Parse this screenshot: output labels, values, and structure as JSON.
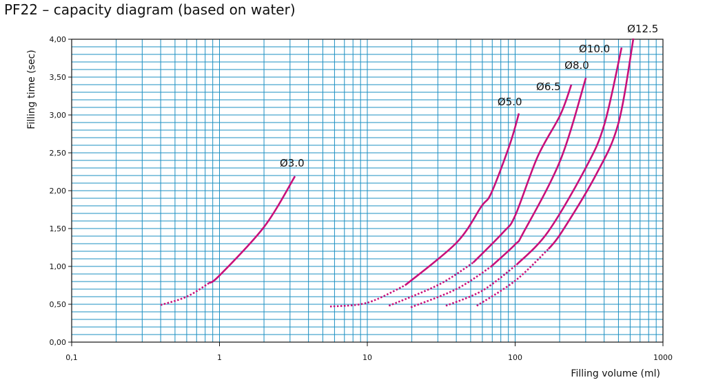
{
  "title": "PF22 – capacity diagram (based on water)",
  "chart_data": {
    "type": "line",
    "title": "PF22 – capacity diagram (based on water)",
    "xlabel": "Filling volume (ml)",
    "ylabel": "Filling time (sec)",
    "xscale": "log",
    "xlim": [
      0.1,
      1000
    ],
    "ylim": [
      0,
      4
    ],
    "grid": true,
    "x_ticks": [
      0.1,
      1,
      10,
      100,
      1000
    ],
    "x_tick_labels": [
      "0,1",
      "1",
      "10",
      "100",
      "1000"
    ],
    "y_ticks": [
      0,
      0.5,
      1,
      1.5,
      2,
      2.5,
      3,
      3.5,
      4
    ],
    "y_tick_labels": [
      "0,00",
      "0,50",
      "1,00",
      "1,50",
      "2,00",
      "2,50",
      "3,00",
      "3,50",
      "4,00"
    ],
    "line_color": "#c8107a",
    "grid_color": "#1b8fc2",
    "series": [
      {
        "name": "Ø3.0",
        "dotted_until": 0.85,
        "points": [
          [
            0.4,
            0.49
          ],
          [
            0.6,
            0.6
          ],
          [
            0.85,
            0.78
          ],
          [
            1,
            0.88
          ],
          [
            2.0,
            1.52
          ],
          [
            3.24,
            2.19
          ]
        ]
      },
      {
        "name": "Ø5.0",
        "dotted_until": 18,
        "points": [
          [
            5.6,
            0.47
          ],
          [
            10,
            0.52
          ],
          [
            18,
            0.75
          ],
          [
            40,
            1.31
          ],
          [
            59,
            1.79
          ],
          [
            69,
            1.97
          ],
          [
            92,
            2.61
          ],
          [
            106,
            3.02
          ]
        ]
      },
      {
        "name": "Ø6.5",
        "dotted_until": 52,
        "points": [
          [
            14,
            0.48
          ],
          [
            30.5,
            0.76
          ],
          [
            52,
            1.05
          ],
          [
            83,
            1.45
          ],
          [
            100,
            1.67
          ],
          [
            142,
            2.45
          ],
          [
            202,
            3.0
          ],
          [
            240,
            3.4
          ]
        ]
      },
      {
        "name": "Ø8.0",
        "dotted_until": 68,
        "points": [
          [
            19.7,
            0.46
          ],
          [
            40,
            0.7
          ],
          [
            68,
            0.99
          ],
          [
            100,
            1.29
          ],
          [
            114,
            1.45
          ],
          [
            202,
            2.4
          ],
          [
            301,
            3.49
          ]
        ]
      },
      {
        "name": "Ø10.0",
        "dotted_until": 102,
        "points": [
          [
            34,
            0.48
          ],
          [
            60,
            0.68
          ],
          [
            102,
            1.02
          ],
          [
            166,
            1.45
          ],
          [
            300,
            2.3
          ],
          [
            402,
            2.88
          ],
          [
            525,
            3.89
          ]
        ]
      },
      {
        "name": "Ø12.5",
        "dotted_until": 168,
        "points": [
          [
            55,
            0.48
          ],
          [
            100,
            0.81
          ],
          [
            168,
            1.23
          ],
          [
            206,
            1.45
          ],
          [
            350,
            2.2
          ],
          [
            498,
            2.88
          ],
          [
            631,
            4.01
          ]
        ]
      }
    ]
  }
}
